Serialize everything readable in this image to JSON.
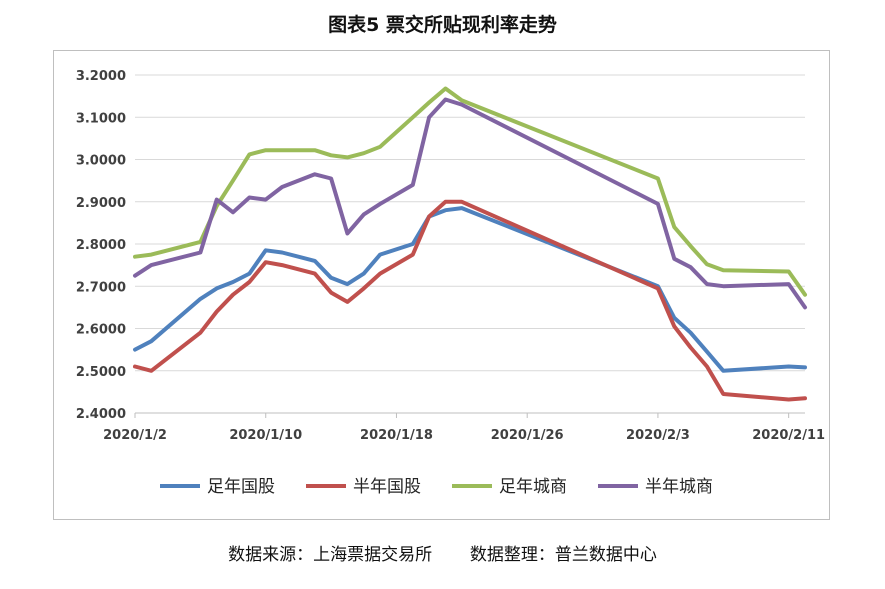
{
  "title": "图表5  票交所贴现利率走势",
  "source": "数据来源：上海票据交易所       数据整理：普兰数据中心",
  "chart_data": {
    "type": "line",
    "ylim": [
      2.4,
      3.2
    ],
    "yticks": [
      2.4,
      2.5,
      2.6,
      2.7,
      2.8,
      2.9,
      3.0,
      3.1,
      3.2
    ],
    "ytick_labels": [
      "2.4000",
      "2.5000",
      "2.6000",
      "2.7000",
      "2.8000",
      "2.9000",
      "3.0000",
      "3.1000",
      "3.2000"
    ],
    "xlim": [
      0,
      41
    ],
    "xticks": [
      0,
      8,
      16,
      24,
      32,
      40
    ],
    "xtick_labels": [
      "2020/1/2",
      "2020/1/10",
      "2020/1/18",
      "2020/1/26",
      "2020/2/3",
      "2020/2/11"
    ],
    "grid": "horizontal",
    "legend": "bottom",
    "x": [
      0,
      1,
      4,
      5,
      6,
      7,
      8,
      9,
      11,
      12,
      13,
      14,
      15,
      17,
      18,
      19,
      20,
      32,
      33,
      34,
      35,
      36,
      40,
      41
    ],
    "series": [
      {
        "name": "足年国股",
        "color": "#4f81bd",
        "values": [
          2.55,
          2.57,
          2.67,
          2.695,
          2.71,
          2.73,
          2.785,
          2.78,
          2.76,
          2.72,
          2.705,
          2.73,
          2.775,
          2.8,
          2.865,
          2.88,
          2.885,
          2.7,
          2.625,
          2.59,
          2.545,
          2.5,
          2.51,
          2.508
        ]
      },
      {
        "name": "半年国股",
        "color": "#c0504d",
        "values": [
          2.51,
          2.5,
          2.59,
          2.64,
          2.68,
          2.71,
          2.757,
          2.75,
          2.73,
          2.685,
          2.663,
          2.695,
          2.73,
          2.775,
          2.865,
          2.9,
          2.9,
          2.695,
          2.605,
          2.555,
          2.51,
          2.445,
          2.432,
          2.435
        ]
      },
      {
        "name": "足年城商",
        "color": "#9bbb59",
        "values": [
          2.77,
          2.775,
          2.805,
          2.89,
          2.95,
          3.012,
          3.022,
          3.022,
          3.022,
          3.01,
          3.005,
          3.015,
          3.03,
          3.1,
          3.135,
          3.168,
          3.14,
          2.955,
          2.84,
          2.795,
          2.752,
          2.738,
          2.735,
          2.68
        ]
      },
      {
        "name": "半年城商",
        "color": "#8064a2",
        "values": [
          2.725,
          2.75,
          2.78,
          2.905,
          2.875,
          2.91,
          2.905,
          2.935,
          2.965,
          2.955,
          2.825,
          2.87,
          2.895,
          2.94,
          3.1,
          3.142,
          3.13,
          2.895,
          2.765,
          2.745,
          2.705,
          2.7,
          2.705,
          2.65
        ]
      }
    ]
  }
}
